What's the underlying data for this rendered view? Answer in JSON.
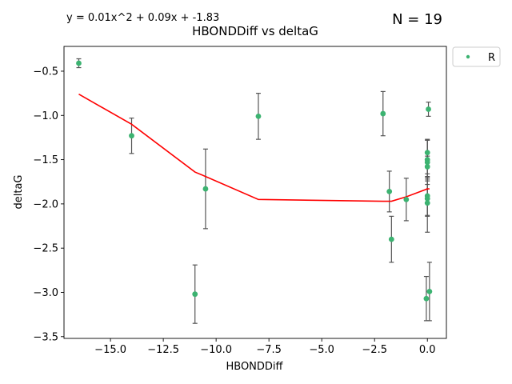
{
  "chart_data": {
    "type": "scatter",
    "title": "HBONDDiff vs deltaG",
    "equation": "y = 0.01x^2 + 0.09x + -1.83",
    "n_label": "N = 19",
    "xlabel": "HBONDDiff",
    "ylabel": "deltaG",
    "xlim": [
      -17.2,
      0.9
    ],
    "ylim": [
      -3.52,
      -0.22
    ],
    "xticks": [
      -15.0,
      -12.5,
      -10.0,
      -7.5,
      -5.0,
      -2.5,
      0.0
    ],
    "xtick_labels": [
      "−15.0",
      "−12.5",
      "−10.0",
      "−7.5",
      "−5.0",
      "−2.5",
      "0.0"
    ],
    "yticks": [
      -3.5,
      -3.0,
      -2.5,
      -2.0,
      -1.5,
      -1.0,
      -0.5
    ],
    "ytick_labels": [
      "−3.5",
      "−3.0",
      "−2.5",
      "−2.0",
      "−1.5",
      "−1.0",
      "−0.5"
    ],
    "grid": false,
    "legend_position": "outside-top-right",
    "point_color": "#3cb371",
    "errorbar_color": "#555555",
    "fit_color": "#ff0000",
    "series": [
      {
        "name": "R",
        "points": [
          {
            "x": -16.5,
            "y": -0.41,
            "err": 0.05
          },
          {
            "x": -14.0,
            "y": -1.23,
            "err": 0.2
          },
          {
            "x": -11.0,
            "y": -3.02,
            "err": 0.33
          },
          {
            "x": -10.5,
            "y": -1.83,
            "err": 0.45
          },
          {
            "x": -8.0,
            "y": -1.01,
            "err": 0.26
          },
          {
            "x": -2.1,
            "y": -0.98,
            "err": 0.25
          },
          {
            "x": -1.8,
            "y": -1.86,
            "err": 0.23
          },
          {
            "x": -1.7,
            "y": -2.4,
            "err": 0.26
          },
          {
            "x": -1.0,
            "y": -1.95,
            "err": 0.24
          },
          {
            "x": 0.0,
            "y": -1.42,
            "err": 0.15
          },
          {
            "x": 0.0,
            "y": -1.5,
            "err": 0.22
          },
          {
            "x": 0.0,
            "y": -1.53,
            "err": 0.25
          },
          {
            "x": 0.0,
            "y": -1.58,
            "err": 0.12
          },
          {
            "x": 0.0,
            "y": -1.91,
            "err": 0.22
          },
          {
            "x": 0.0,
            "y": -1.94,
            "err": 0.2
          },
          {
            "x": 0.0,
            "y": -1.99,
            "err": 0.33
          },
          {
            "x": 0.05,
            "y": -0.93,
            "err": 0.08
          },
          {
            "x": 0.1,
            "y": -2.99,
            "err": 0.33
          },
          {
            "x": -0.05,
            "y": -3.07,
            "err": 0.25
          }
        ]
      }
    ],
    "fit_line": {
      "x": [
        -16.5,
        -14.0,
        -11.0,
        -10.5,
        -8.0,
        -2.1,
        -1.8,
        -1.7,
        -1.0,
        0.0,
        0.0,
        0.0,
        0.0,
        0.0,
        0.0,
        0.0,
        0.05,
        0.1,
        -0.05
      ],
      "y": [
        -0.76,
        -1.1,
        -1.64,
        -1.69,
        -1.95,
        -1.97,
        -1.97,
        -1.97,
        -1.92,
        -1.83,
        -1.83,
        -1.83,
        -1.83,
        -1.83,
        -1.83,
        -1.83,
        -1.83,
        -1.83,
        -1.83
      ]
    }
  }
}
